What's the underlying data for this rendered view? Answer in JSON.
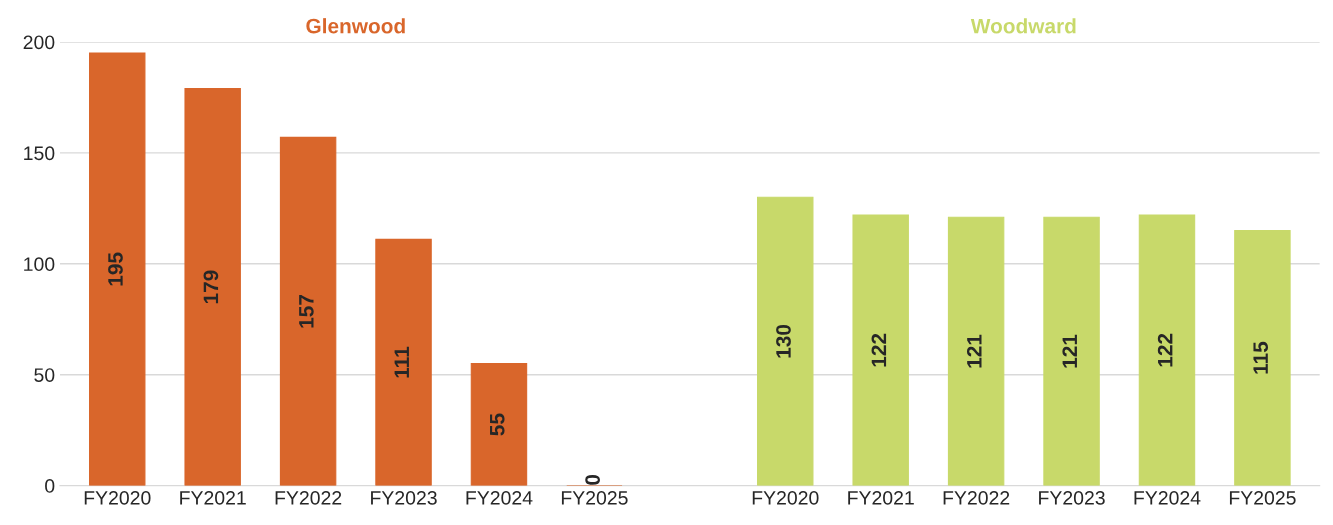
{
  "chart_data": {
    "type": "bar",
    "categories": [
      "FY2020",
      "FY2021",
      "FY2022",
      "FY2023",
      "FY2024",
      "FY2025",
      null,
      "FY2020",
      "FY2021",
      "FY2022",
      "FY2023",
      "FY2024",
      "FY2025"
    ],
    "series": [
      {
        "name": "Glenwood",
        "color": "#d9662b",
        "values": [
          195,
          179,
          157,
          111,
          55,
          0,
          null,
          null,
          null,
          null,
          null,
          null,
          null
        ]
      },
      {
        "name": "Woodward",
        "color": "#c8d96a",
        "values": [
          null,
          null,
          null,
          null,
          null,
          null,
          null,
          130,
          122,
          121,
          121,
          122,
          115
        ]
      }
    ],
    "ylim": [
      0,
      200
    ],
    "yticks": [
      0,
      50,
      100,
      150,
      200
    ],
    "grid": "y",
    "data_labels": true,
    "legend": false
  }
}
